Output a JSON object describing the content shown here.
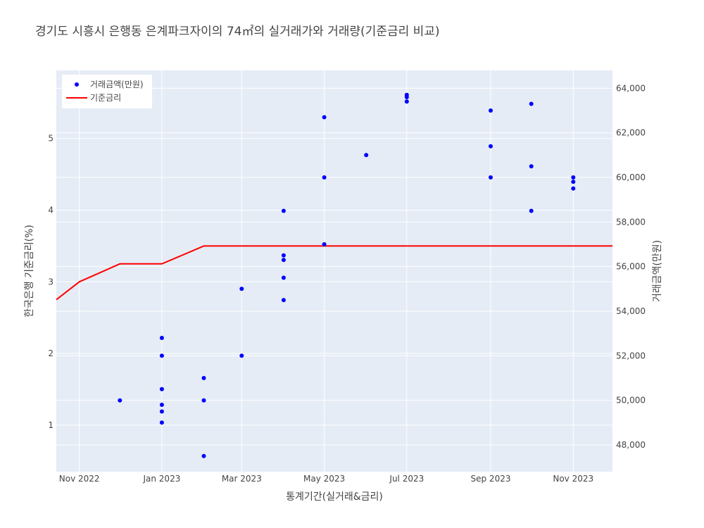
{
  "chart_data": {
    "type": "scatter",
    "title": "경기도 시흥시 은행동 은계파크자이의 74㎡의 실거래가와 거래량(기준금리 비교)",
    "xlabel": "통계기간(실거래&금리)",
    "ylabel_left": "한국은행 기준금리(%)",
    "ylabel_right": "거래금액(만원)",
    "x_range": [
      "2022-10-15",
      "2023-11-30"
    ],
    "y_left_range": [
      0.35,
      5.95
    ],
    "y_right_range": [
      46800,
      64800
    ],
    "x_ticks": [
      {
        "date": "2022-11-01",
        "label": "Nov 2022"
      },
      {
        "date": "2023-01-01",
        "label": "Jan 2023"
      },
      {
        "date": "2023-03-01",
        "label": "Mar 2023"
      },
      {
        "date": "2023-05-01",
        "label": "May 2023"
      },
      {
        "date": "2023-07-01",
        "label": "Jul 2023"
      },
      {
        "date": "2023-09-01",
        "label": "Sep 2023"
      },
      {
        "date": "2023-11-01",
        "label": "Nov 2023"
      }
    ],
    "y_left_ticks": [
      1,
      2,
      3,
      4,
      5
    ],
    "y_right_ticks": [
      {
        "value": 48000,
        "label": "48,000"
      },
      {
        "value": 50000,
        "label": "50,000"
      },
      {
        "value": 52000,
        "label": "52,000"
      },
      {
        "value": 54000,
        "label": "54,000"
      },
      {
        "value": 56000,
        "label": "56,000"
      },
      {
        "value": 58000,
        "label": "58,000"
      },
      {
        "value": 60000,
        "label": "60,000"
      },
      {
        "value": 62000,
        "label": "62,000"
      },
      {
        "value": 64000,
        "label": "64,000"
      }
    ],
    "grid": true,
    "legend_position": "top-left",
    "series": [
      {
        "name": "거래금액(만원)",
        "type": "scatter",
        "axis": "right",
        "color": "#0000ff",
        "points": [
          {
            "x": "2022-12-01",
            "y": 50000
          },
          {
            "x": "2023-01-01",
            "y": 52800
          },
          {
            "x": "2023-01-01",
            "y": 52000
          },
          {
            "x": "2023-01-01",
            "y": 50500
          },
          {
            "x": "2023-01-01",
            "y": 49800
          },
          {
            "x": "2023-01-01",
            "y": 49500
          },
          {
            "x": "2023-01-01",
            "y": 49000
          },
          {
            "x": "2023-02-01",
            "y": 51000
          },
          {
            "x": "2023-02-01",
            "y": 50000
          },
          {
            "x": "2023-02-01",
            "y": 47500
          },
          {
            "x": "2023-03-01",
            "y": 55000
          },
          {
            "x": "2023-03-01",
            "y": 52000
          },
          {
            "x": "2023-04-01",
            "y": 58500
          },
          {
            "x": "2023-04-01",
            "y": 56500
          },
          {
            "x": "2023-04-01",
            "y": 56300
          },
          {
            "x": "2023-04-01",
            "y": 55500
          },
          {
            "x": "2023-04-01",
            "y": 54500
          },
          {
            "x": "2023-05-01",
            "y": 62700
          },
          {
            "x": "2023-05-01",
            "y": 60000
          },
          {
            "x": "2023-05-01",
            "y": 57000
          },
          {
            "x": "2023-06-01",
            "y": 61000
          },
          {
            "x": "2023-07-01",
            "y": 63700
          },
          {
            "x": "2023-07-01",
            "y": 63600
          },
          {
            "x": "2023-07-01",
            "y": 63400
          },
          {
            "x": "2023-09-01",
            "y": 63000
          },
          {
            "x": "2023-09-01",
            "y": 61400
          },
          {
            "x": "2023-09-01",
            "y": 60000
          },
          {
            "x": "2023-10-01",
            "y": 63300
          },
          {
            "x": "2023-10-01",
            "y": 60500
          },
          {
            "x": "2023-10-01",
            "y": 58500
          },
          {
            "x": "2023-11-01",
            "y": 60000
          },
          {
            "x": "2023-11-01",
            "y": 59800
          },
          {
            "x": "2023-11-01",
            "y": 59500
          }
        ]
      },
      {
        "name": "기준금리",
        "type": "line",
        "axis": "left",
        "color": "#ff0000",
        "points": [
          {
            "x": "2022-10-15",
            "y": 2.75
          },
          {
            "x": "2022-11-01",
            "y": 3.0
          },
          {
            "x": "2022-12-01",
            "y": 3.25
          },
          {
            "x": "2023-01-01",
            "y": 3.25
          },
          {
            "x": "2023-02-01",
            "y": 3.5
          },
          {
            "x": "2023-11-30",
            "y": 3.5
          }
        ]
      }
    ]
  }
}
